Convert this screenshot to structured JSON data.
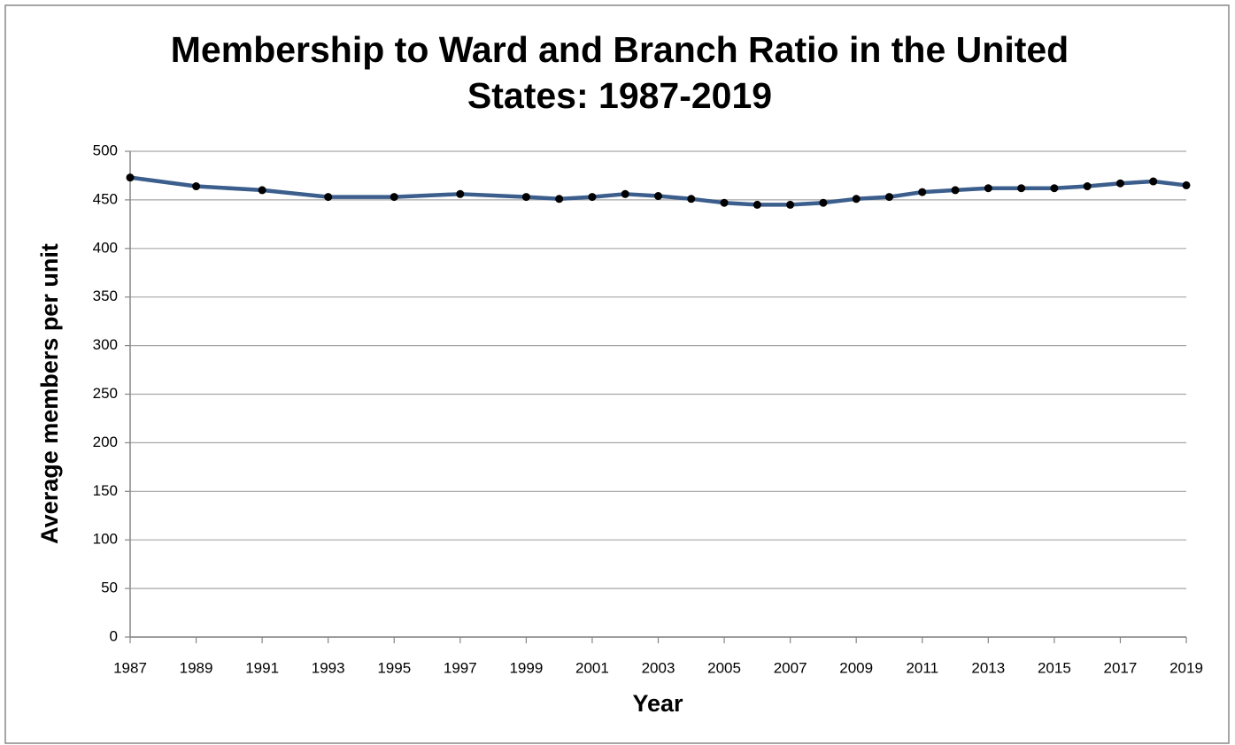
{
  "chart_data": {
    "type": "line",
    "title": "Membership to Ward and Branch Ratio in the United States: 1987-2019",
    "xlabel": "Year",
    "ylabel": "Average members per unit",
    "x": [
      1987,
      1989,
      1991,
      1993,
      1995,
      1997,
      1999,
      2000,
      2001,
      2002,
      2003,
      2004,
      2005,
      2006,
      2007,
      2008,
      2009,
      2010,
      2011,
      2012,
      2013,
      2014,
      2015,
      2016,
      2017,
      2018,
      2019
    ],
    "series": [
      {
        "name": "Average members per unit",
        "color": "#3b5e8c",
        "values": [
          473,
          464,
          460,
          453,
          453,
          456,
          453,
          451,
          453,
          456,
          454,
          451,
          447,
          445,
          445,
          447,
          451,
          453,
          458,
          460,
          462,
          462,
          462,
          464,
          467,
          469,
          465
        ]
      }
    ],
    "marker_color": "#000000",
    "xlim": [
      1987,
      2019
    ],
    "xticks": [
      1987,
      1989,
      1991,
      1993,
      1995,
      1997,
      1999,
      2001,
      2003,
      2005,
      2007,
      2009,
      2011,
      2013,
      2015,
      2017,
      2019
    ],
    "ylim": [
      0,
      500
    ],
    "yticks": [
      0,
      50,
      100,
      150,
      200,
      250,
      300,
      350,
      400,
      450,
      500
    ],
    "grid": true
  }
}
